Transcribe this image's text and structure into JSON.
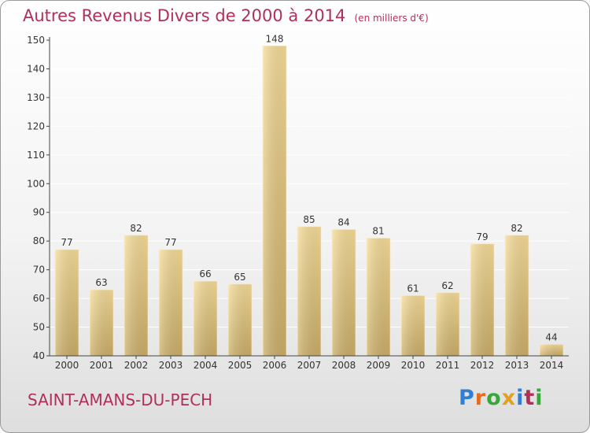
{
  "header": {
    "title": "Autres Revenus Divers de 2000 à 2014",
    "unit": "(en milliers d'€)"
  },
  "footer": {
    "commune": "SAINT-AMANS-DU-PECH",
    "brand": "Proxiti"
  },
  "brand_colors": [
    "#2f7fd6",
    "#e36c1e",
    "#3aa63a",
    "#e3a01e",
    "#2f7fd6",
    "#b0305a",
    "#3aa63a"
  ],
  "colors": {
    "bar_light": "#f6dc98",
    "bar_dark": "#cbae68",
    "axis": "#444444",
    "grid": "#ffffff",
    "title": "#b0305a"
  },
  "chart_data": {
    "type": "bar",
    "title": "Autres Revenus Divers de 2000 à 2014",
    "subtitle": "(en milliers d'€)",
    "categories": [
      "2000",
      "2001",
      "2002",
      "2003",
      "2004",
      "2005",
      "2006",
      "2007",
      "2008",
      "2009",
      "2010",
      "2011",
      "2012",
      "2013",
      "2014"
    ],
    "values": [
      77,
      63,
      82,
      77,
      66,
      65,
      148,
      85,
      84,
      81,
      61,
      62,
      79,
      82,
      44
    ],
    "ylim": [
      40,
      150
    ],
    "yticks": [
      40,
      50,
      60,
      70,
      80,
      90,
      100,
      110,
      120,
      130,
      140,
      150
    ],
    "grid": true,
    "data_labels": true
  }
}
